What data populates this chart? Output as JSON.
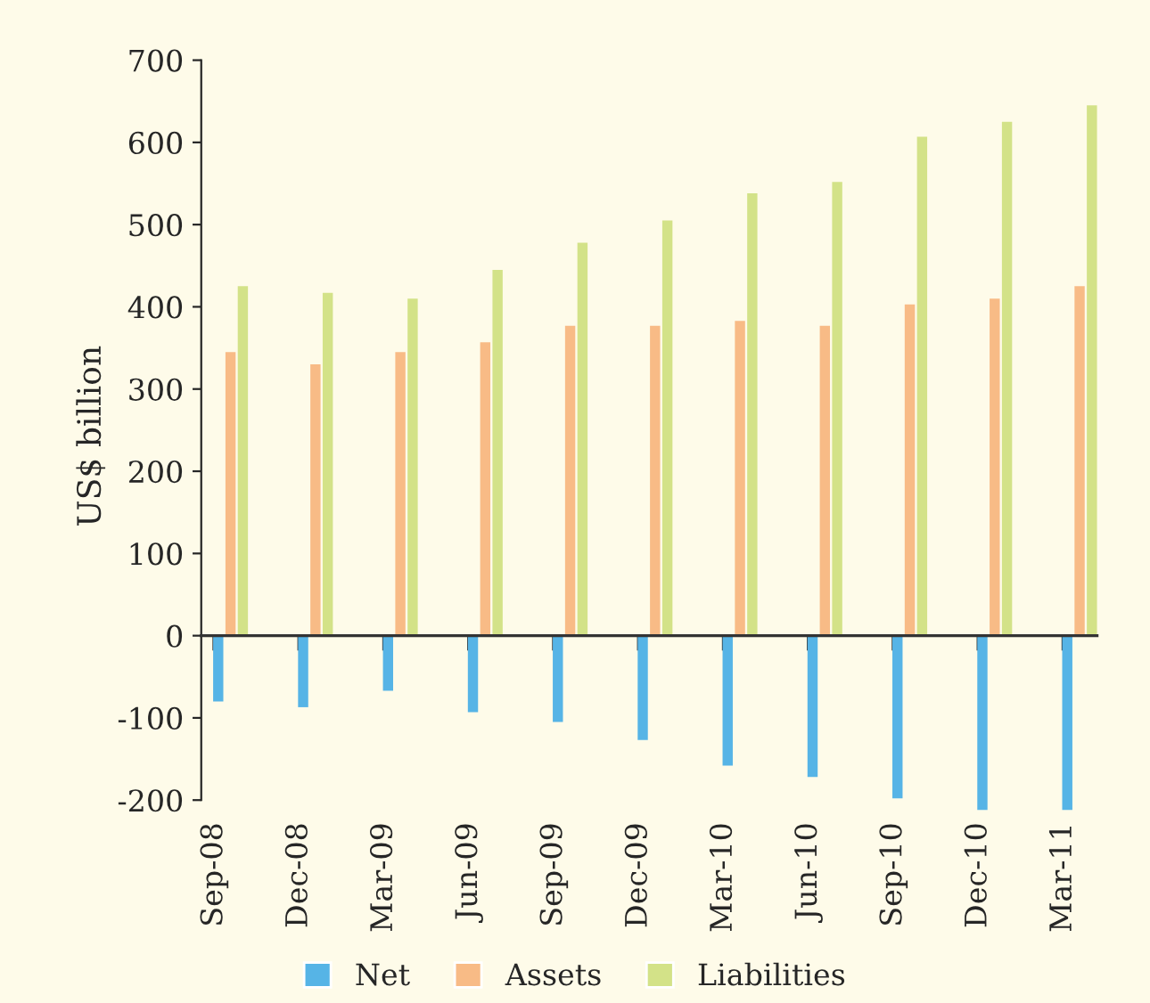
{
  "chart_data": {
    "type": "bar",
    "ylabel": "US$ billion",
    "categories": [
      "Sep-08",
      "Dec-08",
      "Mar-09",
      "Jun-09",
      "Sep-09",
      "Dec-09",
      "Mar-10",
      "Jun-10",
      "Sep-10",
      "Dec-10",
      "Mar-11"
    ],
    "series": [
      {
        "name": "Net",
        "color": "#56b4e6",
        "values": [
          -80,
          -87,
          -67,
          -93,
          -105,
          -127,
          -158,
          -172,
          -198,
          -212,
          -212
        ]
      },
      {
        "name": "Assets",
        "color": "#f8bb86",
        "values": [
          345,
          330,
          345,
          357,
          377,
          377,
          383,
          377,
          403,
          410,
          425
        ]
      },
      {
        "name": "Liabilities",
        "color": "#d3e288",
        "values": [
          425,
          417,
          410,
          445,
          478,
          505,
          538,
          552,
          607,
          625,
          645
        ]
      }
    ],
    "ylim": [
      -215,
      700
    ],
    "yticks": [
      -200,
      -100,
      0,
      100,
      200,
      300,
      400,
      500,
      600,
      700
    ],
    "legend": "bottom"
  }
}
